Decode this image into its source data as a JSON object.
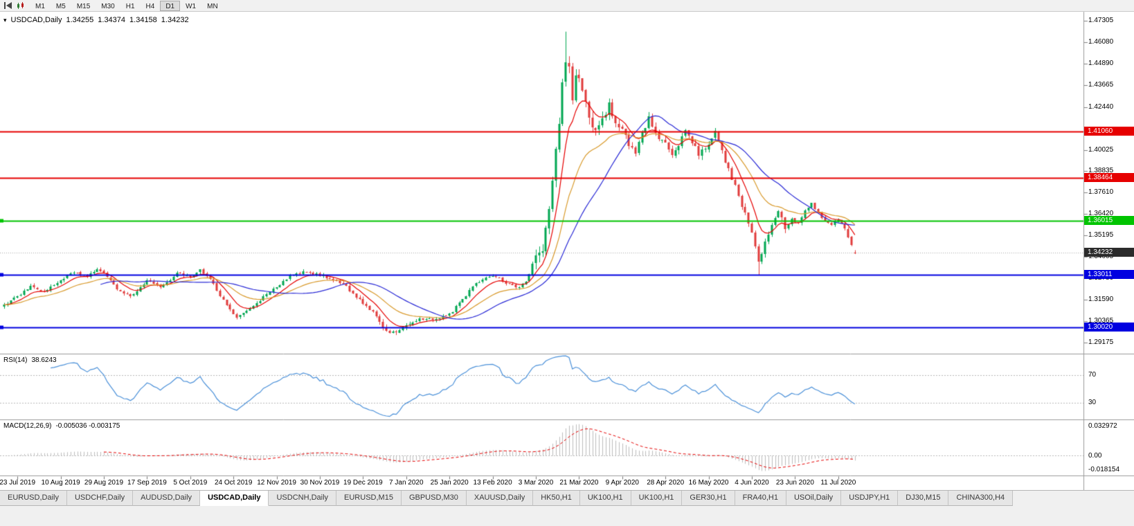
{
  "toolbar": {
    "timeframes": [
      "M1",
      "M5",
      "M15",
      "M30",
      "H1",
      "H4",
      "D1",
      "W1",
      "MN"
    ],
    "active_timeframe": "D1"
  },
  "chart": {
    "marker": "▾",
    "symbol_title": "USDCAD,Daily",
    "open": "1.34255",
    "high": "1.34374",
    "low": "1.34158",
    "close": "1.34232"
  },
  "rsi_panel": {
    "name": "RSI(14)",
    "value": "38.6243",
    "levels": [
      "70",
      "30"
    ]
  },
  "macd_panel": {
    "name": "MACD(12,26,9)",
    "values_text": "-0.005036 -0.003175",
    "scale_labels": [
      "0.032972",
      "0.00",
      "-0.018154"
    ]
  },
  "chart_data": {
    "type": "candlestick",
    "symbol": "USDCAD",
    "timeframe": "Daily",
    "title": "USDCAD,Daily",
    "last_bar": {
      "open": 1.34255,
      "high": 1.34374,
      "low": 1.34158,
      "close": 1.34232
    },
    "price_axis": {
      "min": 1.2855,
      "max": 1.478,
      "tick_labels": [
        "1.47305",
        "1.46080",
        "1.44890",
        "1.43665",
        "1.42440",
        "1.40025",
        "1.38835",
        "1.37610",
        "1.36420",
        "1.35195",
        "1.34005",
        "1.32780",
        "1.31590",
        "1.30365",
        "1.29175"
      ]
    },
    "x_labels": [
      "23 Jul 2019",
      "10 Aug 2019",
      "29 Aug 2019",
      "17 Sep 2019",
      "5 Oct 2019",
      "24 Oct 2019",
      "12 Nov 2019",
      "30 Nov 2019",
      "19 Dec 2019",
      "7 Jan 2020",
      "25 Jan 2020",
      "13 Feb 2020",
      "3 Mar 2020",
      "21 Mar 2020",
      "9 Apr 2020",
      "28 Apr 2020",
      "16 May 2020",
      "4 Jun 2020",
      "23 Jun 2020",
      "11 Jul 2020"
    ],
    "bars_count": 257,
    "close_anchors": [
      [
        0,
        1.313
      ],
      [
        4,
        1.318
      ],
      [
        8,
        1.3235
      ],
      [
        12,
        1.3205
      ],
      [
        17,
        1.3265
      ],
      [
        21,
        1.3315
      ],
      [
        25,
        1.3285
      ],
      [
        28,
        1.3335
      ],
      [
        30,
        1.3305
      ],
      [
        34,
        1.3215
      ],
      [
        38,
        1.3175
      ],
      [
        43,
        1.326
      ],
      [
        47,
        1.3235
      ],
      [
        52,
        1.3305
      ],
      [
        56,
        1.3285
      ],
      [
        59,
        1.3335
      ],
      [
        63,
        1.3245
      ],
      [
        67,
        1.3125
      ],
      [
        70,
        1.306
      ],
      [
        74,
        1.3105
      ],
      [
        78,
        1.317
      ],
      [
        82,
        1.3235
      ],
      [
        86,
        1.329
      ],
      [
        90,
        1.3315
      ],
      [
        95,
        1.33
      ],
      [
        99,
        1.327
      ],
      [
        103,
        1.3235
      ],
      [
        106,
        1.3175
      ],
      [
        108,
        1.3135
      ],
      [
        111,
        1.3085
      ],
      [
        114,
        1.3
      ],
      [
        116,
        1.2965
      ],
      [
        119,
        1.299
      ],
      [
        121,
        1.3005
      ],
      [
        125,
        1.3055
      ],
      [
        129,
        1.3045
      ],
      [
        134,
        1.3075
      ],
      [
        138,
        1.3155
      ],
      [
        142,
        1.3255
      ],
      [
        147,
        1.3295
      ],
      [
        151,
        1.3255
      ],
      [
        155,
        1.3225
      ],
      [
        158,
        1.329
      ],
      [
        160,
        1.3395
      ],
      [
        162,
        1.344
      ],
      [
        164,
        1.366
      ],
      [
        166,
        1.399
      ],
      [
        168,
        1.436
      ],
      [
        169,
        1.451
      ],
      [
        170,
        1.445
      ],
      [
        171,
        1.426
      ],
      [
        172,
        1.443
      ],
      [
        174,
        1.434
      ],
      [
        176,
        1.416
      ],
      [
        178,
        1.409
      ],
      [
        180,
        1.417
      ],
      [
        182,
        1.426
      ],
      [
        184,
        1.415
      ],
      [
        186,
        1.4135
      ],
      [
        188,
        1.403
      ],
      [
        190,
        1.399
      ],
      [
        192,
        1.409
      ],
      [
        194,
        1.419
      ],
      [
        196,
        1.409
      ],
      [
        199,
        1.403
      ],
      [
        201,
        1.3955
      ],
      [
        203,
        1.4025
      ],
      [
        205,
        1.4105
      ],
      [
        207,
        1.405
      ],
      [
        209,
        1.3985
      ],
      [
        212,
        1.4025
      ],
      [
        214,
        1.4095
      ],
      [
        216,
        1.3985
      ],
      [
        218,
        1.3905
      ],
      [
        220,
        1.3795
      ],
      [
        222,
        1.3695
      ],
      [
        225,
        1.3525
      ],
      [
        227,
        1.3385
      ],
      [
        229,
        1.3475
      ],
      [
        231,
        1.358
      ],
      [
        233,
        1.3655
      ],
      [
        235,
        1.3565
      ],
      [
        237,
        1.3615
      ],
      [
        239,
        1.359
      ],
      [
        241,
        1.3655
      ],
      [
        243,
        1.3705
      ],
      [
        245,
        1.3645
      ],
      [
        247,
        1.3605
      ],
      [
        249,
        1.3585
      ],
      [
        251,
        1.36
      ],
      [
        253,
        1.3565
      ],
      [
        255,
        1.3465
      ],
      [
        256,
        1.3423
      ]
    ],
    "extremes": {
      "spike_high": {
        "index": 169,
        "high": 1.4668
      },
      "june_low": {
        "index": 227,
        "low": 1.3298
      }
    },
    "horizontal_lines": [
      {
        "price": 1.4106,
        "label": "1.41060",
        "color": "#e60000"
      },
      {
        "price": 1.38464,
        "label": "1.38464",
        "color": "#e60000"
      },
      {
        "price": 1.36015,
        "label": "1.36015",
        "color": "#00c400"
      },
      {
        "price": 1.33011,
        "label": "1.33011",
        "color": "#0000e0"
      },
      {
        "price": 1.3002,
        "label": "1.30020",
        "color": "#0000e0"
      }
    ],
    "current_price": {
      "value": 1.34232,
      "label": "1.34232",
      "tag_color": "#2b2b2b"
    },
    "moving_averages": [
      {
        "type": "ema",
        "period": 8,
        "color": "#e60000"
      },
      {
        "type": "ema",
        "period": 21,
        "color": "#d99a2b"
      },
      {
        "type": "sma",
        "period": 30,
        "color": "#2929d6"
      }
    ],
    "candle_colors": {
      "up": "#00a651",
      "down": "#e13b3b"
    },
    "indicators": {
      "rsi": {
        "period": 14,
        "current": 38.6243,
        "levels": [
          70,
          30
        ],
        "color": "#4a90d9"
      },
      "macd": {
        "fast": 12,
        "slow": 26,
        "signal": 9,
        "current": [
          -0.005036,
          -0.003175
        ],
        "scale_max": 0.032972,
        "scale_min": -0.018154,
        "histogram_color": "#bdbdbd",
        "signal_color": "#e60000"
      }
    }
  },
  "tabs": [
    {
      "label": "EURUSD,Daily",
      "active": false
    },
    {
      "label": "USDCHF,Daily",
      "active": false
    },
    {
      "label": "AUDUSD,Daily",
      "active": false
    },
    {
      "label": "USDCAD,Daily",
      "active": true
    },
    {
      "label": "USDCNH,Daily",
      "active": false
    },
    {
      "label": "EURUSD,M15",
      "active": false
    },
    {
      "label": "GBPUSD,M30",
      "active": false
    },
    {
      "label": "XAUUSD,Daily",
      "active": false
    },
    {
      "label": "HK50,H1",
      "active": false
    },
    {
      "label": "UK100,H1",
      "active": false
    },
    {
      "label": "UK100,H1",
      "active": false
    },
    {
      "label": "GER30,H1",
      "active": false
    },
    {
      "label": "FRA40,H1",
      "active": false
    },
    {
      "label": "USOil,Daily",
      "active": false
    },
    {
      "label": "USDJPY,H1",
      "active": false
    },
    {
      "label": "DJ30,M15",
      "active": false
    },
    {
      "label": "CHINA300,H4",
      "active": false
    }
  ]
}
